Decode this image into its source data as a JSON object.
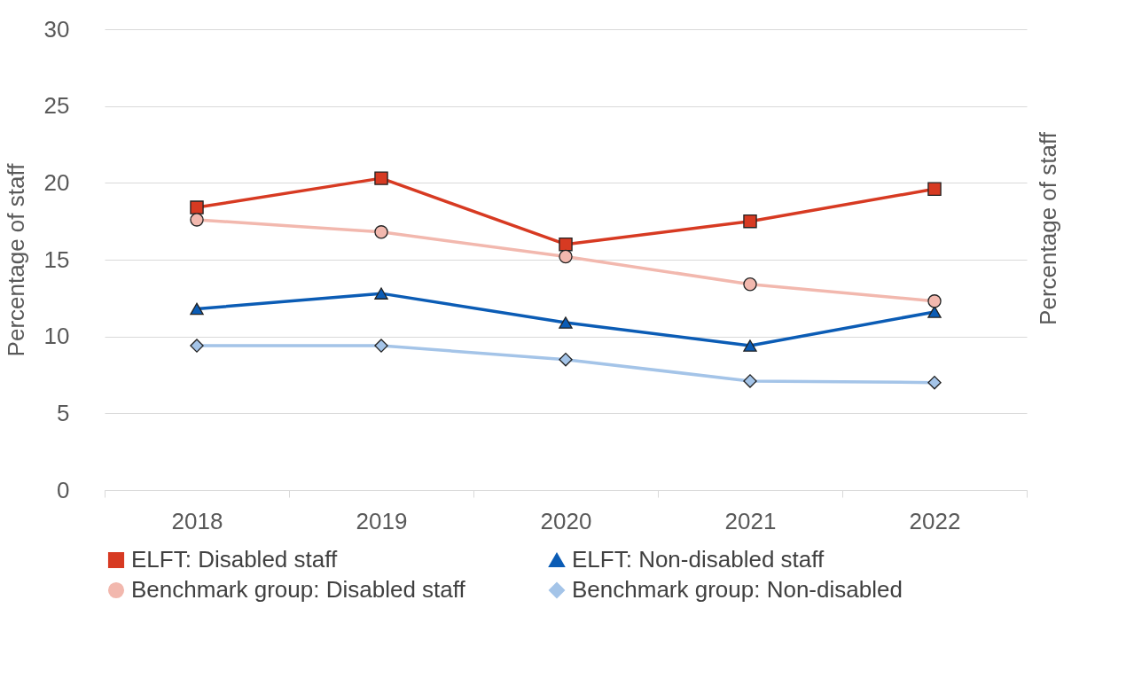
{
  "chart_data": {
    "type": "line",
    "ylabel": "Percentage of staff",
    "y2label": "Percentage of staff",
    "categories": [
      "2018",
      "2019",
      "2020",
      "2021",
      "2022"
    ],
    "ylim": [
      0,
      30
    ],
    "yticks": [
      0,
      5,
      10,
      15,
      20,
      25,
      30
    ],
    "grid": "y",
    "legend": "bottom",
    "series": [
      {
        "name": "ELFT: Disabled staff",
        "color": "#d73a22",
        "marker": "square",
        "values": [
          18.4,
          20.3,
          16.0,
          17.5,
          19.6
        ]
      },
      {
        "name": "ELFT: Non-disabled staff",
        "color": "#0b5cb5",
        "marker": "triangle",
        "values": [
          11.8,
          12.8,
          10.9,
          9.4,
          11.6
        ]
      },
      {
        "name": "Benchmark group: Disabled staff",
        "color": "#f2b8ae",
        "marker": "circle",
        "values": [
          17.6,
          16.8,
          15.2,
          13.4,
          12.3
        ]
      },
      {
        "name": "Benchmark group: Non-disabled",
        "color": "#a4c4e8",
        "marker": "diamond",
        "values": [
          9.4,
          9.4,
          8.5,
          7.1,
          7.0
        ]
      }
    ]
  }
}
